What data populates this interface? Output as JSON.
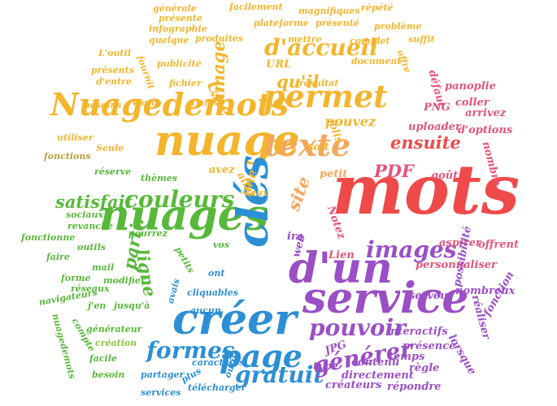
{
  "palette": {
    "yellow": "#F4B52C",
    "orange": "#F5A65B",
    "red": "#EF4A4A",
    "pink": "#E2557B",
    "green": "#58B83A",
    "lime": "#8CC63F",
    "blue": "#2C8FD6",
    "purple": "#9A4FC6",
    "olive": "#B3A33A"
  },
  "words": [
    {
      "text": "mots",
      "color": "red"
    },
    {
      "text": "service",
      "color": "purple"
    },
    {
      "text": "créer",
      "color": "blue"
    },
    {
      "text": "d'un",
      "color": "purple"
    },
    {
      "text": "nuage",
      "color": "yellow"
    },
    {
      "text": "nuages",
      "color": "green"
    },
    {
      "text": "Nuagedemots",
      "color": "yellow"
    },
    {
      "text": "clés",
      "color": "blue"
    },
    {
      "text": "page",
      "color": "blue"
    },
    {
      "text": "texte",
      "color": "orange"
    },
    {
      "text": "permet",
      "color": "yellow"
    },
    {
      "text": "gratuit",
      "color": "blue"
    },
    {
      "text": "générer",
      "color": "purple"
    },
    {
      "text": "pouvoir",
      "color": "purple"
    },
    {
      "text": "d'accueil",
      "color": "yellow"
    },
    {
      "text": "formes",
      "color": "blue"
    },
    {
      "text": "images",
      "color": "purple"
    },
    {
      "text": "couleurs",
      "color": "green"
    },
    {
      "text": "satisfait",
      "color": "green"
    },
    {
      "text": "ensuite",
      "color": "red"
    },
    {
      "text": "partir",
      "color": "green"
    },
    {
      "text": "ligne",
      "color": "green"
    },
    {
      "text": "PDF",
      "color": "pink"
    },
    {
      "text": "site",
      "color": "orange"
    },
    {
      "text": "image",
      "color": "yellow"
    },
    {
      "text": "Une",
      "color": "yellow"
    },
    {
      "text": "qu'il",
      "color": "yellow"
    },
    {
      "text": "une",
      "color": "yellow"
    },
    {
      "text": "pouvez",
      "color": "yellow"
    },
    {
      "text": "URL",
      "color": "yellow"
    },
    {
      "text": "soit",
      "color": "yellow"
    },
    {
      "text": "allez",
      "color": "yellow"
    },
    {
      "text": "avez",
      "color": "yellow"
    },
    {
      "text": "petit",
      "color": "orange"
    },
    {
      "text": "goût",
      "color": "pink"
    },
    {
      "text": "nombre",
      "color": "pink"
    },
    {
      "text": "défaut",
      "color": "pink"
    },
    {
      "text": "coller",
      "color": "pink"
    },
    {
      "text": "panoplie",
      "color": "pink"
    },
    {
      "text": "arrivez",
      "color": "pink"
    },
    {
      "text": "PNG",
      "color": "pink"
    },
    {
      "text": "d'options",
      "color": "pink"
    },
    {
      "text": "uploader",
      "color": "pink"
    },
    {
      "text": "Notez",
      "color": "pink"
    },
    {
      "text": "aspirer",
      "color": "pink"
    },
    {
      "text": "offrent",
      "color": "pink"
    },
    {
      "text": "personnaliser",
      "color": "pink"
    },
    {
      "text": "Lien",
      "color": "pink"
    },
    {
      "text": "jolis",
      "color": "yellow"
    },
    {
      "text": "ira",
      "color": "purple"
    },
    {
      "text": "web",
      "color": "purple"
    },
    {
      "text": "serveur",
      "color": "purple"
    },
    {
      "text": "nombreux",
      "color": "purple"
    },
    {
      "text": "réaliser",
      "color": "purple"
    },
    {
      "text": "possibilité",
      "color": "purple"
    },
    {
      "text": "fonction",
      "color": "purple"
    },
    {
      "text": "interactifs",
      "color": "purple"
    },
    {
      "text": "présence",
      "color": "purple"
    },
    {
      "text": "lorsque",
      "color": "purple"
    },
    {
      "text": "temps",
      "color": "purple"
    },
    {
      "text": "JPG",
      "color": "purple"
    },
    {
      "text": "type",
      "color": "purple"
    },
    {
      "text": "contenu",
      "color": "purple"
    },
    {
      "text": "règle",
      "color": "purple"
    },
    {
      "text": "directement",
      "color": "purple"
    },
    {
      "text": "créateurs",
      "color": "purple"
    },
    {
      "text": "répondre",
      "color": "purple"
    },
    {
      "text": "générale",
      "color": "yellow"
    },
    {
      "text": "facilement",
      "color": "yellow"
    },
    {
      "text": "magnifiques",
      "color": "yellow"
    },
    {
      "text": "répété",
      "color": "yellow"
    },
    {
      "text": "présente",
      "color": "yellow"
    },
    {
      "text": "infographie",
      "color": "yellow"
    },
    {
      "text": "plateforme",
      "color": "yellow"
    },
    {
      "text": "présenté",
      "color": "yellow"
    },
    {
      "text": "problème",
      "color": "yellow"
    },
    {
      "text": "quelque",
      "color": "yellow"
    },
    {
      "text": "produites",
      "color": "yellow"
    },
    {
      "text": "mettre",
      "color": "yellow"
    },
    {
      "text": "complet",
      "color": "yellow"
    },
    {
      "text": "suffit",
      "color": "yellow"
    },
    {
      "text": "L'outil",
      "color": "yellow"
    },
    {
      "text": "publicité",
      "color": "yellow"
    },
    {
      "text": "document",
      "color": "yellow"
    },
    {
      "text": "offre",
      "color": "yellow"
    },
    {
      "text": "présents",
      "color": "yellow"
    },
    {
      "text": "d'entre",
      "color": "yellow"
    },
    {
      "text": "fichier",
      "color": "yellow"
    },
    {
      "text": "résultat",
      "color": "yellow"
    },
    {
      "text": "besoins",
      "color": "yellow"
    },
    {
      "text": "Word",
      "color": "yellow"
    },
    {
      "text": "d'une",
      "color": "yellow"
    },
    {
      "text": "fournit",
      "color": "yellow"
    },
    {
      "text": "utiliser",
      "color": "yellow"
    },
    {
      "text": "Seule",
      "color": "yellow"
    },
    {
      "text": "fonctions",
      "color": "olive"
    },
    {
      "text": "réserve",
      "color": "green"
    },
    {
      "text": "thèmes",
      "color": "green"
    },
    {
      "text": "eux",
      "color": "yellow"
    },
    {
      "text": "sociaux",
      "color": "green"
    },
    {
      "text": "revanche",
      "color": "green"
    },
    {
      "text": "pourrez",
      "color": "green"
    },
    {
      "text": "fonctionne",
      "color": "green"
    },
    {
      "text": "outils",
      "color": "green"
    },
    {
      "text": "petits",
      "color": "green"
    },
    {
      "text": "vos",
      "color": "green"
    },
    {
      "text": "faire",
      "color": "green"
    },
    {
      "text": "mail",
      "color": "green"
    },
    {
      "text": "forme",
      "color": "green"
    },
    {
      "text": "modifier",
      "color": "green"
    },
    {
      "text": "réseaux",
      "color": "green"
    },
    {
      "text": "navigateurs",
      "color": "green"
    },
    {
      "text": "j'en",
      "color": "green"
    },
    {
      "text": "jusqu'à",
      "color": "green"
    },
    {
      "text": "compte",
      "color": "green"
    },
    {
      "text": "générateur",
      "color": "green"
    },
    {
      "text": "nuagedemots",
      "color": "green"
    },
    {
      "text": "création",
      "color": "lime"
    },
    {
      "text": "facile",
      "color": "green"
    },
    {
      "text": "besoin",
      "color": "green"
    },
    {
      "text": "ont",
      "color": "blue"
    },
    {
      "text": "cliquables",
      "color": "blue"
    },
    {
      "text": "avais",
      "color": "blue"
    },
    {
      "text": "aucun",
      "color": "blue"
    },
    {
      "text": "caractères",
      "color": "blue"
    },
    {
      "text": "partager",
      "color": "blue"
    },
    {
      "text": "outil",
      "color": "blue"
    },
    {
      "text": "plus",
      "color": "blue"
    },
    {
      "text": "télécharger",
      "color": "blue"
    },
    {
      "text": "services",
      "color": "blue"
    }
  ]
}
